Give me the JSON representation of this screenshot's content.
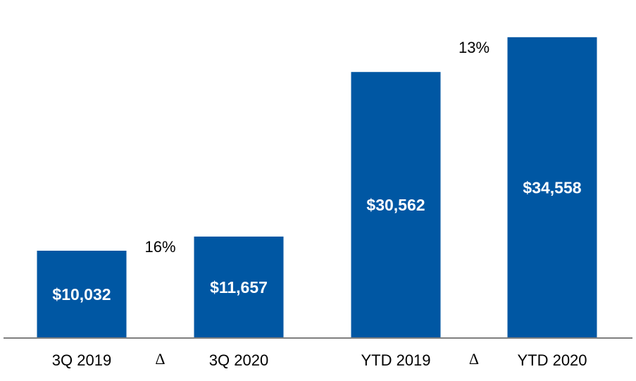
{
  "chart_data": {
    "type": "bar",
    "categories": [
      "3Q 2019",
      "3Q 2020",
      "YTD 2019",
      "YTD 2020"
    ],
    "values": [
      10032,
      11657,
      30562,
      34558
    ],
    "value_labels": [
      "$10,032",
      "$11,657",
      "$30,562",
      "$34,558"
    ],
    "ylim": [
      0,
      36000
    ],
    "grid": false,
    "bar_color": "#0057a3",
    "axis_color": "#7f7f7f",
    "comparisons": [
      {
        "from": "3Q 2019",
        "to": "3Q 2020",
        "change_label": "16%",
        "symbol": "Δ"
      },
      {
        "from": "YTD 2019",
        "to": "YTD 2020",
        "change_label": "13%",
        "symbol": "Δ"
      }
    ]
  }
}
